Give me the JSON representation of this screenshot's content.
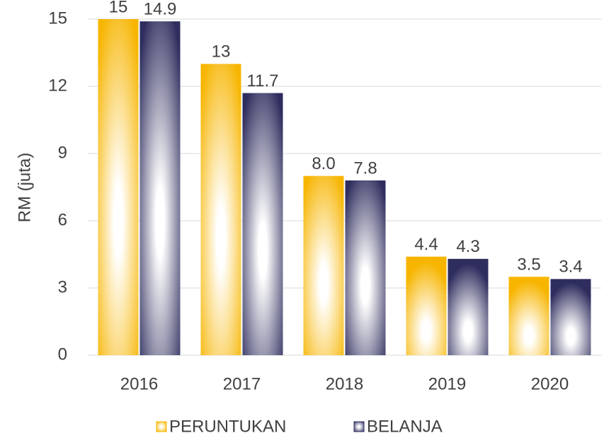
{
  "chart_data": {
    "type": "bar",
    "y_label": "RM (juta)",
    "categories": [
      "2016",
      "2017",
      "2018",
      "2019",
      "2020"
    ],
    "series": [
      {
        "name": "PERUNTUKAN",
        "color": "#f7b500",
        "values": [
          15,
          13,
          8,
          4.4,
          3.5
        ],
        "value_labels": [
          "15",
          "13",
          "8.0",
          "4.4",
          "3.5"
        ]
      },
      {
        "name": "BELANJA",
        "color": "#2e2d5e",
        "values": [
          14.9,
          11.7,
          7.8,
          4.3,
          3.4
        ]
      }
    ],
    "ylim": [
      0,
      15
    ],
    "yticks": [
      0,
      3,
      6,
      9,
      12,
      15
    ],
    "grid": true,
    "legend": "bottom"
  }
}
